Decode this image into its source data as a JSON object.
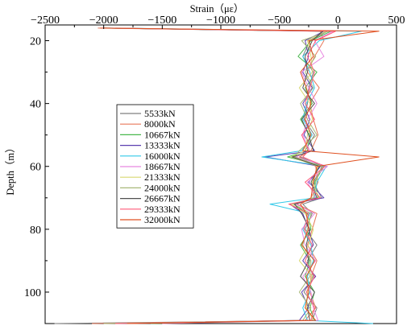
{
  "chart_data": {
    "type": "line",
    "xlabel": "Strain（με）",
    "ylabel": "Depth（m）",
    "xlim": [
      -2500,
      500
    ],
    "ylim": [
      15,
      110
    ],
    "y_inverted": true,
    "x_axis_position": "top",
    "x_ticks": [
      -2500,
      -2000,
      -1500,
      -1000,
      -500,
      0,
      500
    ],
    "x_tick_labels": [
      "−2500",
      "−2000",
      "−1500",
      "−1000",
      "−500",
      "0",
      "500"
    ],
    "y_ticks": [
      20,
      40,
      60,
      80,
      100
    ],
    "y_tick_labels": [
      "20",
      "40",
      "60",
      "80",
      "100"
    ],
    "grid": false,
    "legend_position": "center-left",
    "series": [
      {
        "name": "5533kN",
        "color": "#7f7f7f",
        "depth": [
          16,
          17,
          20,
          25,
          30,
          35,
          40,
          45,
          50,
          55,
          57,
          60,
          65,
          70,
          72,
          75,
          80,
          85,
          90,
          95,
          100,
          105,
          109,
          110
        ],
        "strain": [
          -1900,
          -90,
          -240,
          -300,
          -210,
          -250,
          -260,
          -290,
          -200,
          -280,
          -320,
          -130,
          -210,
          -140,
          -300,
          -220,
          -280,
          -180,
          -260,
          -210,
          -290,
          -180,
          -220,
          -2420
        ]
      },
      {
        "name": "8000kN",
        "color": "#e8785a",
        "depth": [
          16,
          17,
          20,
          25,
          30,
          35,
          40,
          45,
          50,
          55,
          57,
          60,
          65,
          70,
          72,
          75,
          80,
          85,
          90,
          95,
          100,
          105,
          109,
          110
        ],
        "strain": [
          -2050,
          -150,
          -120,
          -200,
          -260,
          -160,
          -240,
          -210,
          -170,
          -230,
          -330,
          -190,
          -170,
          -230,
          -350,
          -180,
          -220,
          -260,
          -180,
          -230,
          -240,
          -190,
          -280,
          -2100
        ]
      },
      {
        "name": "10667kN",
        "color": "#49b84d",
        "depth": [
          16,
          17,
          20,
          25,
          30,
          35,
          40,
          45,
          50,
          55,
          57,
          60,
          65,
          70,
          72,
          75,
          80,
          85,
          90,
          95,
          100,
          105,
          109,
          110
        ],
        "strain": [
          -2000,
          -60,
          -230,
          -340,
          -180,
          -280,
          -220,
          -320,
          -240,
          -260,
          -430,
          -120,
          -200,
          -170,
          -380,
          -260,
          -230,
          -320,
          -240,
          -280,
          -200,
          -240,
          -200,
          -1600
        ]
      },
      {
        "name": "13333kN",
        "color": "#5a3fb0",
        "depth": [
          16,
          17,
          20,
          25,
          30,
          35,
          40,
          45,
          50,
          55,
          57,
          60,
          65,
          70,
          72,
          75,
          80,
          85,
          90,
          95,
          100,
          105,
          109,
          110
        ],
        "strain": [
          -1960,
          -120,
          -280,
          -250,
          -300,
          -220,
          -300,
          -240,
          -290,
          -200,
          -620,
          -150,
          -250,
          -120,
          -410,
          -300,
          -250,
          -210,
          -300,
          -190,
          -310,
          -250,
          -330,
          -1900
        ]
      },
      {
        "name": "16000kN",
        "color": "#30c8e8",
        "depth": [
          16,
          17,
          20,
          25,
          30,
          35,
          40,
          45,
          50,
          55,
          57,
          60,
          65,
          70,
          72,
          75,
          80,
          85,
          90,
          95,
          100,
          105,
          109,
          110
        ],
        "strain": [
          -1950,
          200,
          -160,
          -300,
          -240,
          -200,
          -270,
          -300,
          -220,
          -310,
          -650,
          -100,
          -180,
          -200,
          -580,
          -240,
          -300,
          -230,
          -210,
          -260,
          -240,
          -300,
          -260,
          300
        ]
      },
      {
        "name": "18667kN",
        "color": "#e888e0",
        "depth": [
          16,
          17,
          20,
          25,
          30,
          35,
          40,
          45,
          50,
          55,
          57,
          60,
          65,
          70,
          72,
          75,
          80,
          85,
          90,
          95,
          100,
          105,
          109,
          110
        ],
        "strain": [
          -2020,
          -40,
          -200,
          -120,
          -310,
          -250,
          -180,
          -260,
          -300,
          -240,
          -360,
          -90,
          -260,
          -190,
          -360,
          -200,
          -310,
          -280,
          -190,
          -300,
          -230,
          -210,
          -170,
          -1500
        ]
      },
      {
        "name": "21333kN",
        "color": "#d8d870",
        "depth": [
          16,
          17,
          20,
          25,
          30,
          35,
          40,
          45,
          50,
          55,
          57,
          60,
          65,
          70,
          72,
          75,
          80,
          85,
          90,
          95,
          100,
          105,
          109,
          110
        ],
        "strain": [
          -2000,
          -100,
          -260,
          -230,
          -220,
          -330,
          -240,
          -220,
          -260,
          -280,
          -400,
          -170,
          -220,
          -160,
          -400,
          -280,
          -210,
          -250,
          -330,
          -220,
          -260,
          -270,
          -210,
          -1800
        ]
      },
      {
        "name": "24000kN",
        "color": "#a8b878",
        "depth": [
          16,
          17,
          20,
          25,
          30,
          35,
          40,
          45,
          50,
          55,
          57,
          60,
          65,
          70,
          72,
          75,
          80,
          85,
          90,
          95,
          100,
          105,
          109,
          110
        ],
        "strain": [
          -1980,
          -80,
          -310,
          -190,
          -280,
          -210,
          -320,
          -260,
          -180,
          -330,
          -370,
          -140,
          -190,
          -210,
          -380,
          -230,
          -260,
          -300,
          -230,
          -240,
          -330,
          -230,
          -300,
          -2000
        ]
      },
      {
        "name": "26667kN",
        "color": "#505050",
        "depth": [
          16,
          17,
          20,
          25,
          30,
          35,
          40,
          45,
          50,
          55,
          57,
          60,
          65,
          70,
          72,
          75,
          80,
          85,
          90,
          95,
          100,
          105,
          109,
          110
        ],
        "strain": [
          -1990,
          -130,
          -220,
          -280,
          -260,
          -300,
          -200,
          -310,
          -250,
          -210,
          -390,
          -160,
          -230,
          -180,
          -370,
          -310,
          -240,
          -270,
          -250,
          -320,
          -200,
          -260,
          -240,
          -1700
        ]
      },
      {
        "name": "29333kN",
        "color": "#ff5a78",
        "depth": [
          16,
          17,
          20,
          25,
          30,
          35,
          40,
          45,
          50,
          55,
          57,
          60,
          65,
          70,
          72,
          75,
          80,
          85,
          90,
          95,
          100,
          105,
          109,
          110
        ],
        "strain": [
          -2010,
          -20,
          -190,
          -260,
          -200,
          -240,
          -280,
          -200,
          -310,
          -250,
          -300,
          -110,
          -280,
          -150,
          -420,
          -250,
          -290,
          -220,
          -280,
          -200,
          -270,
          -200,
          -230,
          -1900
        ]
      },
      {
        "name": "32000kN",
        "color": "#e05020",
        "depth": [
          16,
          17,
          20,
          25,
          30,
          35,
          40,
          45,
          50,
          55,
          57,
          60,
          65,
          70,
          72,
          75,
          80,
          85,
          90,
          95,
          100,
          105,
          109,
          110
        ],
        "strain": [
          -2030,
          350,
          -250,
          -210,
          -320,
          -270,
          -230,
          -280,
          -230,
          -300,
          350,
          -180,
          -210,
          -230,
          -320,
          -270,
          -250,
          -310,
          -200,
          -270,
          -250,
          -280,
          -190,
          -1800
        ]
      }
    ]
  }
}
